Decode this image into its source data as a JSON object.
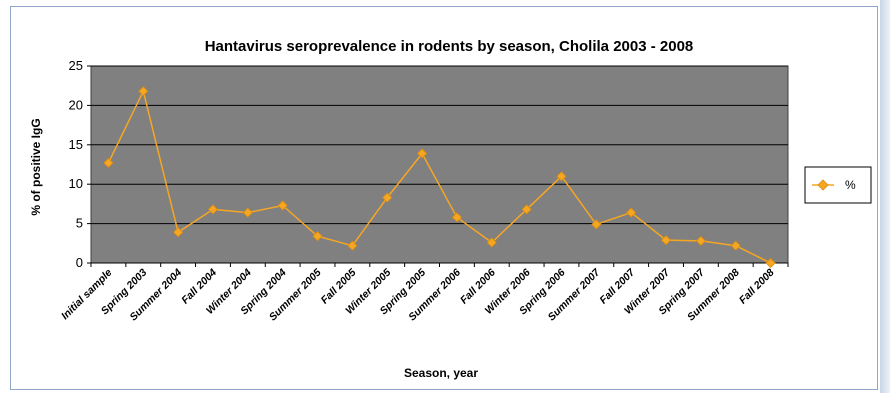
{
  "chart_data": {
    "type": "line",
    "title": "Hantavirus seroprevalence in rodents by season, Cholila 2003 - 2008",
    "xlabel": "Season, year",
    "ylabel": "% of positive IgG",
    "ylim": [
      0,
      25
    ],
    "yticks": [
      "0",
      "5",
      "10",
      "15",
      "20",
      "25"
    ],
    "grid": true,
    "plot_background": "#808080",
    "legend_position": "right",
    "categories": [
      "Initial sample",
      "Spring 2003",
      "Summer 2004",
      "Fall 2004",
      "Winter 2004",
      "Spring 2004",
      "Summer 2005",
      "Fall 2005",
      "Winter 2005",
      "Spring 2005",
      "Summer 2006",
      "Fall 2006",
      "Winter 2006",
      "Spring 2006",
      "Summer 2007",
      "Fall 2007",
      "Winter 2007",
      "Spring 2007",
      "Summer 2008",
      "Fall 2008"
    ],
    "series": [
      {
        "name": "%",
        "color": "#f5a623",
        "values": [
          12.7,
          21.8,
          3.9,
          6.8,
          6.4,
          7.3,
          3.4,
          2.2,
          8.3,
          13.9,
          5.8,
          2.6,
          6.8,
          11.0,
          4.9,
          6.4,
          2.9,
          2.8,
          2.2,
          0.0
        ]
      }
    ]
  }
}
